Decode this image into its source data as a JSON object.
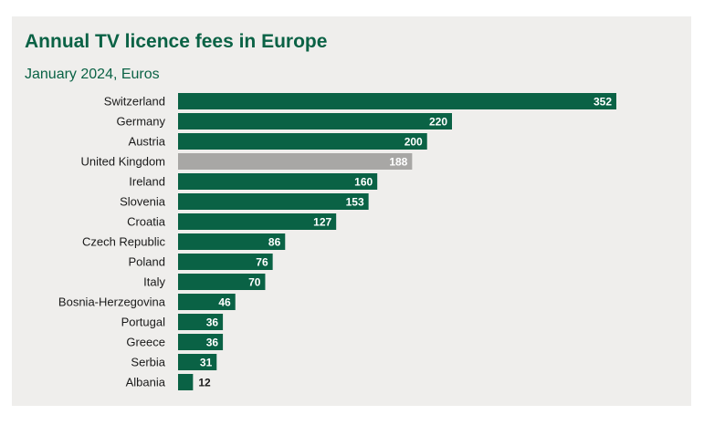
{
  "colors": {
    "bar": "#0a6245",
    "highlight_bar": "#a8a7a5",
    "title": "#0a6245",
    "background": "#efeeec",
    "label_inside": "#ffffff",
    "label_outside": "#1a1a1a"
  },
  "chart_data": {
    "type": "bar",
    "orientation": "horizontal",
    "title": "Annual TV licence fees in Europe",
    "subtitle": "January 2024, Euros",
    "xlabel": "",
    "ylabel": "",
    "xlim": [
      0,
      352
    ],
    "grid": false,
    "legend": "none",
    "highlight": "United Kingdom",
    "categories": [
      "Switzerland",
      "Germany",
      "Austria",
      "United Kingdom",
      "Ireland",
      "Slovenia",
      "Croatia",
      "Czech Republic",
      "Poland",
      "Italy",
      "Bosnia-Herzegovina",
      "Portugal",
      "Greece",
      "Serbia",
      "Albania"
    ],
    "values": [
      352,
      220,
      200,
      188,
      160,
      153,
      127,
      86,
      76,
      70,
      46,
      36,
      36,
      31,
      12
    ]
  }
}
